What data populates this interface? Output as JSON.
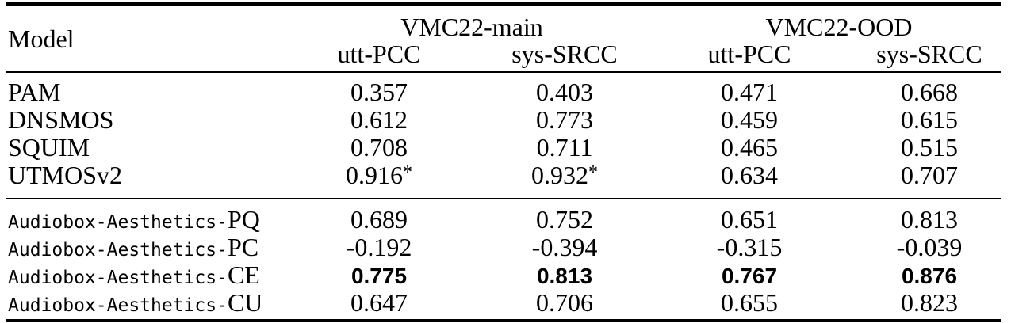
{
  "colors": {
    "text": "#000000",
    "background": "#ffffff",
    "rule": "#000000"
  },
  "table": {
    "model_header": "Model",
    "groups": [
      {
        "label": "VMC22-main",
        "cols": [
          "utt-PCC",
          "sys-SRCC"
        ]
      },
      {
        "label": "VMC22-OOD",
        "cols": [
          "utt-PCC",
          "sys-SRCC"
        ]
      }
    ],
    "sections": [
      {
        "rows": [
          {
            "model": {
              "prefix": "",
              "suffix": "PAM"
            },
            "values": [
              {
                "v": "0.357"
              },
              {
                "v": "0.403"
              },
              {
                "v": "0.471"
              },
              {
                "v": "0.668"
              }
            ]
          },
          {
            "model": {
              "prefix": "",
              "suffix": "DNSMOS"
            },
            "values": [
              {
                "v": "0.612"
              },
              {
                "v": "0.773"
              },
              {
                "v": "0.459"
              },
              {
                "v": "0.615"
              }
            ]
          },
          {
            "model": {
              "prefix": "",
              "suffix": "SQUIM"
            },
            "values": [
              {
                "v": "0.708"
              },
              {
                "v": "0.711"
              },
              {
                "v": "0.465"
              },
              {
                "v": "0.515"
              }
            ]
          },
          {
            "model": {
              "prefix": "",
              "suffix": "UTMOSv2"
            },
            "values": [
              {
                "v": "0.916",
                "star": true
              },
              {
                "v": "0.932",
                "star": true
              },
              {
                "v": "0.634"
              },
              {
                "v": "0.707"
              }
            ]
          }
        ]
      },
      {
        "rows": [
          {
            "model": {
              "prefix": "Audiobox-Aesthetics-",
              "suffix": "PQ"
            },
            "values": [
              {
                "v": "0.689"
              },
              {
                "v": "0.752"
              },
              {
                "v": "0.651"
              },
              {
                "v": "0.813"
              }
            ]
          },
          {
            "model": {
              "prefix": "Audiobox-Aesthetics-",
              "suffix": "PC"
            },
            "values": [
              {
                "v": "-0.192"
              },
              {
                "v": "-0.394"
              },
              {
                "v": "-0.315"
              },
              {
                "v": "-0.039"
              }
            ]
          },
          {
            "model": {
              "prefix": "Audiobox-Aesthetics-",
              "suffix": "CE"
            },
            "values": [
              {
                "v": "0.775",
                "bold": true
              },
              {
                "v": "0.813",
                "bold": true
              },
              {
                "v": "0.767",
                "bold": true
              },
              {
                "v": "0.876",
                "bold": true
              }
            ]
          },
          {
            "model": {
              "prefix": "Audiobox-Aesthetics-",
              "suffix": "CU"
            },
            "values": [
              {
                "v": "0.647"
              },
              {
                "v": "0.706"
              },
              {
                "v": "0.655"
              },
              {
                "v": "0.823"
              }
            ]
          }
        ]
      }
    ],
    "layout": {
      "row_tops": [
        [
          99,
          134,
          169,
          204
        ],
        [
          260,
          295,
          330,
          365
        ]
      ],
      "value_col_classes": [
        "c1",
        "c2",
        "c3",
        "c4"
      ]
    }
  }
}
